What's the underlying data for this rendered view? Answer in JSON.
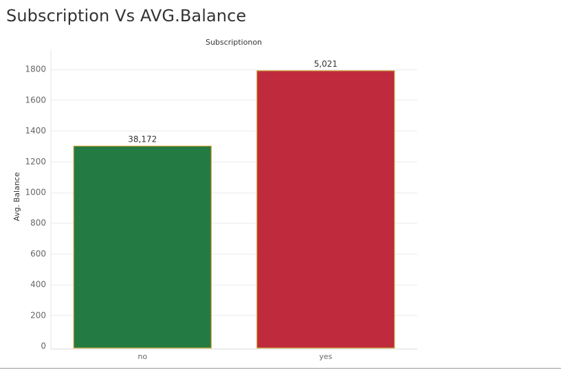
{
  "title": "Subscription Vs AVG.Balance",
  "chart_data": {
    "type": "bar",
    "column_header": "Subscriptionon",
    "ylabel": "Avg. Balance",
    "categories": [
      "no",
      "yes"
    ],
    "values": [
      1300,
      1790
    ],
    "data_labels": [
      "38,172",
      "5,021"
    ],
    "colors": [
      "#237a43",
      "#bf2a3d"
    ],
    "bar_border_color": "#c9a233",
    "ylim": [
      0,
      1900
    ],
    "yticks": [
      0,
      200,
      400,
      600,
      800,
      1000,
      1200,
      1400,
      1600,
      1800
    ],
    "grid": true,
    "legend": "none"
  }
}
